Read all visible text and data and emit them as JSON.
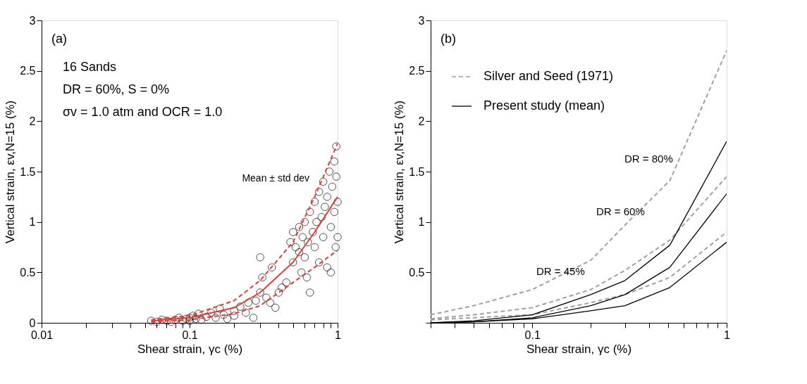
{
  "chart_data": [
    {
      "type": "scatter",
      "xlabel": "Shear strain, γc (%)",
      "ylabel": "Vertical strain, εv,N=15 (%)",
      "log": "x",
      "grid": false,
      "legend": false,
      "xlim": [
        0.01,
        1
      ],
      "ylim": [
        0,
        3
      ],
      "xticks": [
        0.01,
        {
          "value": 0.02,
          "label": null
        },
        {
          "value": 0.03,
          "label": null
        },
        {
          "value": 0.04,
          "label": null
        },
        {
          "value": 0.05,
          "label": null
        },
        {
          "value": 0.06,
          "label": null
        },
        {
          "value": 0.07,
          "label": null
        },
        {
          "value": 0.08,
          "label": null
        },
        {
          "value": 0.09,
          "label": null
        },
        0.1,
        {
          "value": 0.2,
          "label": null
        },
        {
          "value": 0.3,
          "label": null
        },
        {
          "value": 0.4,
          "label": null
        },
        {
          "value": 0.5,
          "label": null
        },
        {
          "value": 0.6,
          "label": null
        },
        {
          "value": 0.7,
          "label": null
        },
        {
          "value": 0.8,
          "label": null
        },
        {
          "value": 0.9,
          "label": null
        },
        1
      ],
      "yticks": [
        0,
        0.5,
        1,
        1.5,
        2,
        2.5,
        3
      ],
      "annotations": [
        "(a)",
        "16 Sands",
        "DR = 60%, S = 0%",
        "σv = 1.0 atm and OCR = 1.0",
        {
          "text": "Mean ± std dev",
          "x": 0.72,
          "y": 1.3
        }
      ],
      "series": [
        {
          "type": "scatter",
          "color": "#000000",
          "marker": "circle",
          "x": [
            0.055,
            0.06,
            0.065,
            0.07,
            0.075,
            0.08,
            0.085,
            0.09,
            0.095,
            0.1,
            0.1,
            0.105,
            0.11,
            0.115,
            0.12,
            0.13,
            0.14,
            0.15,
            0.16,
            0.17,
            0.18,
            0.2,
            0.2,
            0.22,
            0.24,
            0.25,
            0.27,
            0.28,
            0.3,
            0.3,
            0.31,
            0.33,
            0.35,
            0.36,
            0.38,
            0.4,
            0.42,
            0.45,
            0.48,
            0.5,
            0.5,
            0.52,
            0.55,
            0.55,
            0.57,
            0.58,
            0.6,
            0.6,
            0.62,
            0.63,
            0.65,
            0.65,
            0.68,
            0.7,
            0.7,
            0.72,
            0.75,
            0.75,
            0.78,
            0.8,
            0.8,
            0.82,
            0.85,
            0.85,
            0.88,
            0.9,
            0.9,
            0.92,
            0.95,
            0.95,
            0.97,
            0.98,
            0.98,
            1,
            1
          ],
          "values": [
            0.02,
            0.01,
            0.03,
            0.02,
            0.01,
            0.03,
            0.05,
            0.02,
            0.04,
            0.05,
            0.02,
            0.07,
            0.04,
            0.09,
            0.03,
            0.06,
            0.1,
            0.05,
            0.14,
            0.08,
            0.04,
            0.12,
            0.07,
            0.16,
            0.1,
            0.2,
            0.05,
            0.22,
            0.65,
            0.3,
            0.45,
            0.25,
            0.2,
            0.55,
            0.15,
            0.3,
            0.35,
            0.4,
            0.8,
            0.6,
            0.9,
            0.75,
            0.95,
            0.7,
            0.5,
            0.85,
            0.65,
            1.0,
            0.45,
            0.8,
            1.1,
            0.3,
            0.9,
            1.2,
            0.75,
            1.0,
            1.3,
            0.6,
            1.05,
            1.4,
            0.85,
            1.15,
            0.55,
            1.25,
            1.5,
            0.95,
            0.5,
            1.35,
            1.6,
            1.1,
            0.75,
            1.75,
            1.45,
            0.85,
            1.2
          ]
        },
        {
          "type": "line",
          "color": "#e03c31",
          "line_style": "solid",
          "marker": "none",
          "x": [
            0.055,
            0.1,
            0.2,
            0.3,
            0.5,
            0.7,
            1
          ],
          "values": [
            0.02,
            0.05,
            0.15,
            0.3,
            0.6,
            0.9,
            1.25
          ]
        },
        {
          "type": "line",
          "color": "#e03c31",
          "line_style": "dashed",
          "marker": "none",
          "x": [
            0.055,
            0.1,
            0.2,
            0.3,
            0.5,
            0.7,
            1
          ],
          "values": [
            0.03,
            0.07,
            0.22,
            0.42,
            0.8,
            1.25,
            1.78
          ]
        },
        {
          "type": "line",
          "color": "#e03c31",
          "line_style": "dashed",
          "marker": "none",
          "x": [
            0.055,
            0.1,
            0.2,
            0.3,
            0.5,
            0.7,
            1
          ],
          "values": [
            0.01,
            0.03,
            0.09,
            0.17,
            0.4,
            0.55,
            0.72
          ]
        }
      ]
    },
    {
      "type": "line",
      "xlabel": "Shear strain, γc (%)",
      "ylabel": "Vertical strain, εv,N=15 (%)",
      "log": "x",
      "grid": false,
      "legend": "top left",
      "marker": "none",
      "xlim": [
        0.03,
        1
      ],
      "ylim": [
        0,
        3
      ],
      "xticks": [
        {
          "value": 0.03,
          "label": null
        },
        {
          "value": 0.04,
          "label": null
        },
        {
          "value": 0.05,
          "label": null
        },
        {
          "value": 0.06,
          "label": null
        },
        {
          "value": 0.07,
          "label": null
        },
        {
          "value": 0.08,
          "label": null
        },
        {
          "value": 0.09,
          "label": null
        },
        0.1,
        {
          "value": 0.2,
          "label": null
        },
        {
          "value": 0.3,
          "label": null
        },
        {
          "value": 0.4,
          "label": null
        },
        {
          "value": 0.5,
          "label": null
        },
        {
          "value": 0.6,
          "label": null
        },
        {
          "value": 0.7,
          "label": null
        },
        {
          "value": 0.8,
          "label": null
        },
        {
          "value": 0.9,
          "label": null
        },
        1
      ],
      "yticks": [
        {
          "value": 0,
          "label": null
        },
        0.5,
        1,
        1.5,
        2,
        2.5,
        3
      ],
      "annotations": [
        "(b)",
        "DR = 45%",
        "DR = 60%",
        "DR = 80%"
      ],
      "series": [
        {
          "name": "Silver and Seed (1971)",
          "color": "#a0a0a0",
          "line_style": "dashed",
          "x": [
            0.03,
            0.05,
            0.1,
            0.2,
            0.3,
            0.51,
            1
          ],
          "values": [
            0.08,
            0.17,
            0.33,
            0.62,
            0.97,
            1.41,
            2.7
          ]
        },
        {
          "color": "#a0a0a0",
          "line_style": "dashed",
          "x": [
            0.03,
            0.05,
            0.1,
            0.2,
            0.3,
            0.51,
            1
          ],
          "values": [
            0.04,
            0.08,
            0.15,
            0.33,
            0.52,
            0.82,
            1.45
          ]
        },
        {
          "color": "#a0a0a0",
          "line_style": "dashed",
          "x": [
            0.03,
            0.05,
            0.1,
            0.2,
            0.3,
            0.51,
            1
          ],
          "values": [
            0.03,
            0.05,
            0.08,
            0.2,
            0.28,
            0.45,
            0.9
          ]
        },
        {
          "name": "Present study (mean)",
          "color": "#000000",
          "line_style": "solid",
          "x": [
            0.03,
            0.05,
            0.1,
            0.2,
            0.3,
            0.51,
            1
          ],
          "values": [
            0,
            0.02,
            0.08,
            0.28,
            0.42,
            0.77,
            1.8
          ]
        },
        {
          "color": "#000000",
          "line_style": "solid",
          "x": [
            0.03,
            0.05,
            0.1,
            0.2,
            0.3,
            0.51,
            1
          ],
          "values": [
            0,
            0.01,
            0.05,
            0.17,
            0.28,
            0.55,
            1.28
          ]
        },
        {
          "color": "#000000",
          "line_style": "solid",
          "x": [
            0.03,
            0.05,
            0.1,
            0.2,
            0.3,
            0.51,
            1
          ],
          "values": [
            0,
            0.01,
            0.04,
            0.12,
            0.17,
            0.35,
            0.8
          ]
        }
      ]
    }
  ]
}
